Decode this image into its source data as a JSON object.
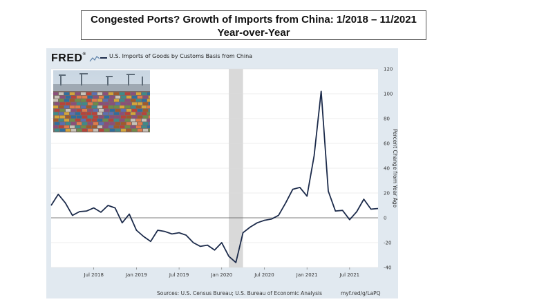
{
  "title": {
    "line1": "Congested Ports? Growth of Imports from China: 1/2018 – 11/2021",
    "line2": "Year-over-Year"
  },
  "fred": {
    "logo": "FRED",
    "legend": "U.S. Imports of Goods by Customs Basis from China",
    "source": "Sources: U.S. Census Bureau; U.S. Bureau of Economic Analysis",
    "link": "myf.red/g/LaPQ"
  },
  "colors": {
    "series": "#1b2a4a",
    "recession": "#d9d9d9",
    "panel": "#e1e9f0"
  },
  "chart_data": {
    "type": "line",
    "title": "Congested Ports? Growth of Imports from China: 1/2018 – 11/2021 Year-over-Year",
    "xlabel": "",
    "ylabel": "Percent Change from Year Ago",
    "ylim": [
      -40,
      120
    ],
    "yticks": [
      120,
      100,
      80,
      60,
      40,
      20,
      0,
      -20,
      -40
    ],
    "xticks": [
      "Jul 2018",
      "Jan 2019",
      "Jul 2019",
      "Jan 2020",
      "Jul 2020",
      "Jan 2021",
      "Jul 2021"
    ],
    "recession": [
      "2020-02",
      "2020-04"
    ],
    "grid": true,
    "series": [
      {
        "name": "U.S. Imports of Goods by Customs Basis from China",
        "x": [
          "2018-01",
          "2018-02",
          "2018-03",
          "2018-04",
          "2018-05",
          "2018-06",
          "2018-07",
          "2018-08",
          "2018-09",
          "2018-10",
          "2018-11",
          "2018-12",
          "2019-01",
          "2019-02",
          "2019-03",
          "2019-04",
          "2019-05",
          "2019-06",
          "2019-07",
          "2019-08",
          "2019-09",
          "2019-10",
          "2019-11",
          "2019-12",
          "2020-01",
          "2020-02",
          "2020-03",
          "2020-04",
          "2020-05",
          "2020-06",
          "2020-07",
          "2020-08",
          "2020-09",
          "2020-10",
          "2020-11",
          "2020-12",
          "2021-01",
          "2021-02",
          "2021-03",
          "2021-04",
          "2021-05",
          "2021-06",
          "2021-07",
          "2021-08",
          "2021-09",
          "2021-10",
          "2021-11"
        ],
        "values": [
          10,
          19,
          12,
          2,
          5,
          5.5,
          8,
          4.5,
          10,
          8,
          -4,
          3,
          -10,
          -15,
          -19,
          -10,
          -11,
          -13,
          -12,
          -14,
          -20,
          -23,
          -22,
          -26,
          -20,
          -31,
          -36,
          -12,
          -7.5,
          -4,
          -2,
          -1,
          2,
          12,
          23,
          24.5,
          17.5,
          50,
          102,
          21.5,
          5.5,
          6,
          -1.5,
          5,
          15,
          7,
          7.5
        ]
      }
    ]
  }
}
